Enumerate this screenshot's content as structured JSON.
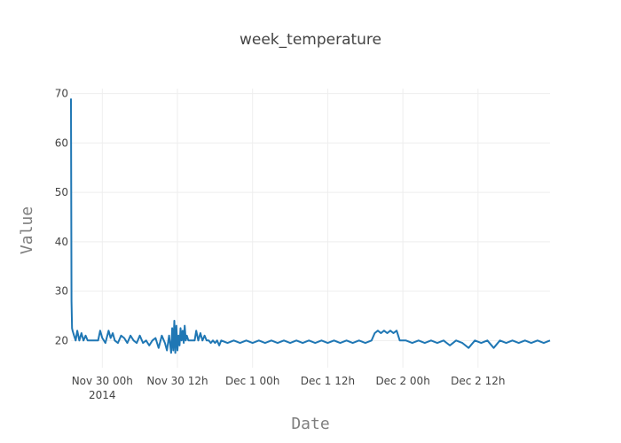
{
  "chart_data": {
    "type": "line",
    "title": "week_temperature",
    "xlabel": "Date",
    "ylabel": "Value",
    "grid": true,
    "legend": "none",
    "colors": {
      "series": "#1f77b4",
      "grid": "#eeeeee",
      "text": "#444444",
      "axis_title": "#7f7f7f"
    },
    "xlim": [
      "2014-11-29 19:00",
      "2014-12-02 23:30"
    ],
    "ylim": [
      14.5,
      71
    ],
    "x_ticks": [
      {
        "value": "2014-11-30 00:00",
        "label": "Nov 30 00h",
        "sublabel": "2014"
      },
      {
        "value": "2014-11-30 12:00",
        "label": "Nov 30 12h",
        "sublabel": ""
      },
      {
        "value": "2014-12-01 00:00",
        "label": "Dec 1 00h",
        "sublabel": ""
      },
      {
        "value": "2014-12-01 12:00",
        "label": "Dec 1 12h",
        "sublabel": ""
      },
      {
        "value": "2014-12-02 00:00",
        "label": "Dec 2 00h",
        "sublabel": ""
      },
      {
        "value": "2014-12-02 12:00",
        "label": "Dec 2 12h",
        "sublabel": ""
      }
    ],
    "y_ticks": [
      20,
      30,
      40,
      50,
      60,
      70
    ],
    "series": [
      {
        "x": [
          "2014-11-29 19:00",
          "2014-11-29 19:05",
          "2014-11-29 19:10",
          "2014-11-29 19:15",
          "2014-11-29 19:30",
          "2014-11-29 19:45",
          "2014-11-29 20:00",
          "2014-11-29 20:20",
          "2014-11-29 20:40",
          "2014-11-29 21:00",
          "2014-11-29 21:20",
          "2014-11-29 21:40",
          "2014-11-29 22:00",
          "2014-11-29 22:20",
          "2014-11-29 22:40",
          "2014-11-29 23:00",
          "2014-11-29 23:20",
          "2014-11-29 23:40",
          "2014-11-30 00:00",
          "2014-11-30 00:30",
          "2014-11-30 01:00",
          "2014-11-30 01:20",
          "2014-11-30 01:40",
          "2014-11-30 02:00",
          "2014-11-30 02:30",
          "2014-11-30 03:00",
          "2014-11-30 03:30",
          "2014-11-30 04:00",
          "2014-11-30 04:30",
          "2014-11-30 05:00",
          "2014-11-30 05:30",
          "2014-11-30 06:00",
          "2014-11-30 06:30",
          "2014-11-30 07:00",
          "2014-11-30 07:30",
          "2014-11-30 08:00",
          "2014-11-30 08:30",
          "2014-11-30 09:00",
          "2014-11-30 09:30",
          "2014-11-30 10:00",
          "2014-11-30 10:20",
          "2014-11-30 10:40",
          "2014-11-30 11:00",
          "2014-11-30 11:10",
          "2014-11-30 11:20",
          "2014-11-30 11:30",
          "2014-11-30 11:40",
          "2014-11-30 11:50",
          "2014-11-30 12:00",
          "2014-11-30 12:10",
          "2014-11-30 12:20",
          "2014-11-30 12:30",
          "2014-11-30 12:40",
          "2014-11-30 12:50",
          "2014-11-30 13:00",
          "2014-11-30 13:10",
          "2014-11-30 13:20",
          "2014-11-30 13:30",
          "2014-11-30 13:45",
          "2014-11-30 14:00",
          "2014-11-30 14:15",
          "2014-11-30 14:30",
          "2014-11-30 14:45",
          "2014-11-30 15:00",
          "2014-11-30 15:20",
          "2014-11-30 15:40",
          "2014-11-30 16:00",
          "2014-11-30 16:20",
          "2014-11-30 16:40",
          "2014-11-30 17:00",
          "2014-11-30 17:20",
          "2014-11-30 17:40",
          "2014-11-30 18:00",
          "2014-11-30 18:20",
          "2014-11-30 18:40",
          "2014-11-30 19:00",
          "2014-11-30 20:00",
          "2014-11-30 21:00",
          "2014-11-30 22:00",
          "2014-11-30 23:00",
          "2014-12-01 00:00",
          "2014-12-01 01:00",
          "2014-12-01 02:00",
          "2014-12-01 03:00",
          "2014-12-01 04:00",
          "2014-12-01 05:00",
          "2014-12-01 06:00",
          "2014-12-01 07:00",
          "2014-12-01 08:00",
          "2014-12-01 09:00",
          "2014-12-01 10:00",
          "2014-12-01 11:00",
          "2014-12-01 12:00",
          "2014-12-01 13:00",
          "2014-12-01 14:00",
          "2014-12-01 15:00",
          "2014-12-01 16:00",
          "2014-12-01 17:00",
          "2014-12-01 18:00",
          "2014-12-01 19:00",
          "2014-12-01 19:30",
          "2014-12-01 20:00",
          "2014-12-01 20:30",
          "2014-12-01 21:00",
          "2014-12-01 21:30",
          "2014-12-01 22:00",
          "2014-12-01 22:30",
          "2014-12-01 23:00",
          "2014-12-01 23:30",
          "2014-12-02 00:00",
          "2014-12-02 00:30",
          "2014-12-02 01:30",
          "2014-12-02 02:30",
          "2014-12-02 03:30",
          "2014-12-02 04:30",
          "2014-12-02 05:30",
          "2014-12-02 06:30",
          "2014-12-02 07:30",
          "2014-12-02 08:30",
          "2014-12-02 09:30",
          "2014-12-02 10:30",
          "2014-12-02 11:30",
          "2014-12-02 12:30",
          "2014-12-02 13:30",
          "2014-12-02 14:30",
          "2014-12-02 15:30",
          "2014-12-02 16:30",
          "2014-12-02 17:30",
          "2014-12-02 18:30",
          "2014-12-02 19:30",
          "2014-12-02 20:30",
          "2014-12-02 21:30",
          "2014-12-02 22:30",
          "2014-12-02 23:30"
        ],
        "y": [
          69,
          28,
          22.5,
          22,
          21,
          20,
          22,
          20,
          21.5,
          20,
          21,
          20,
          20,
          20,
          20,
          20,
          20,
          22,
          20.5,
          19.5,
          22,
          20.5,
          21.5,
          20,
          19.5,
          21,
          20.5,
          19.5,
          21,
          20,
          19.5,
          21,
          19.5,
          20,
          19,
          20,
          20.5,
          18.5,
          21,
          19.5,
          18,
          21,
          17.5,
          22.5,
          18,
          24,
          17.5,
          23,
          18,
          21,
          19,
          22.5,
          20,
          22,
          19.5,
          23,
          20,
          21,
          20,
          20,
          20,
          20,
          20,
          22,
          20,
          21.5,
          20,
          21,
          20,
          20,
          19.5,
          20,
          19.5,
          20,
          19,
          20,
          19.5,
          20,
          19.5,
          20,
          19.5,
          20,
          19.5,
          20,
          19.5,
          20,
          19.5,
          20,
          19.5,
          20,
          19.5,
          20,
          19.5,
          20,
          19.5,
          20,
          19.5,
          20,
          19.5,
          20,
          21.5,
          22,
          21.5,
          22,
          21.5,
          22,
          21.5,
          22,
          20,
          20,
          20,
          19.5,
          20,
          19.5,
          20,
          19.5,
          20,
          19,
          20,
          19.5,
          18.5,
          20,
          19.5,
          20,
          18.5,
          20,
          19.5,
          20,
          19.5,
          20,
          19.5,
          20,
          19.5,
          20
        ]
      }
    ]
  }
}
